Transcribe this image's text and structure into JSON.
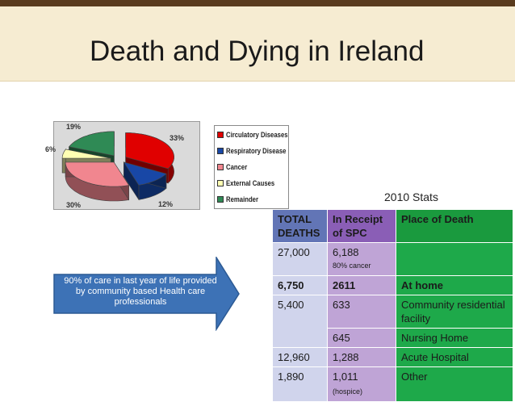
{
  "title": "Death and Dying in Ireland",
  "year_label": "2010 Stats",
  "arrow_callout": "90% of care in last year of life provided by community based Health care professionals",
  "chart_data": {
    "type": "pie",
    "labels": [
      "Circulatory Diseases",
      "Respiratory Disease",
      "Cancer",
      "External Causes",
      "Remainder"
    ],
    "values": [
      33,
      12,
      30,
      6,
      19
    ],
    "value_labels": [
      "33%",
      "12%",
      "30%",
      "6%",
      "19%"
    ],
    "colors": [
      "#e00000",
      "#1847a6",
      "#f1868f",
      "#ffffb3",
      "#2f8a55"
    ],
    "legend_position": "right"
  },
  "table": {
    "headers": [
      [
        "TOTAL",
        "DEATHS"
      ],
      [
        "In Receipt",
        "of SPC"
      ],
      [
        "Place of Death"
      ]
    ],
    "rows": [
      {
        "deaths": "27,000",
        "spc": "6,188",
        "spc_note": "80% cancer",
        "place": ""
      },
      {
        "deaths": "6,750",
        "spc": "2611",
        "spc_note": "",
        "place": "At home"
      },
      {
        "deaths": "5,400",
        "spc": "633",
        "spc_note": "",
        "place": "Community residential facility"
      },
      {
        "deaths": "",
        "spc": "645",
        "spc_note": "",
        "place": "Nursing Home"
      },
      {
        "deaths": "12,960",
        "spc": "1,288",
        "spc_note": "",
        "place": "Acute Hospital"
      },
      {
        "deaths": "1,890",
        "spc": "1,011",
        "spc_note": "(hospice)",
        "place": "Other"
      }
    ]
  },
  "colors": {
    "top_bar": "#5a3b1e",
    "title_band": "#f6ecd2",
    "arrow": "#3d72b6",
    "header_deaths": "#6275b6",
    "header_spc": "#8a5eb6",
    "header_place": "#1a9a3e"
  }
}
